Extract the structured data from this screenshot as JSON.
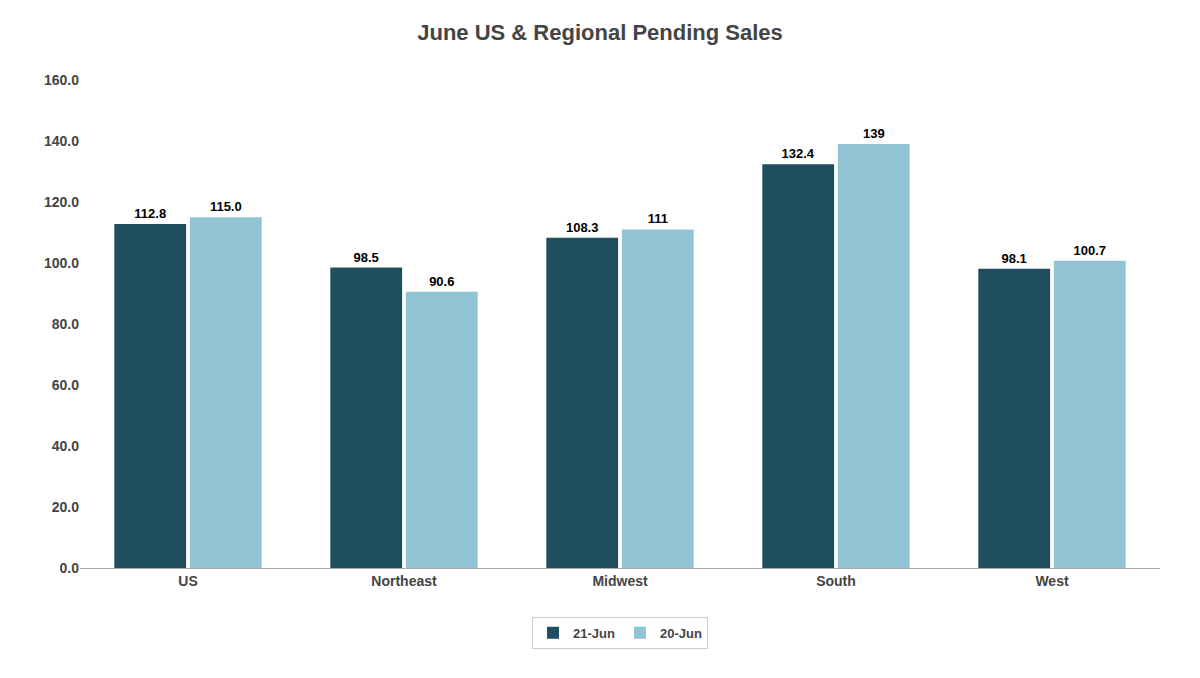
{
  "chart_data": {
    "type": "bar",
    "title": "June US & Regional Pending Sales",
    "categories": [
      "US",
      "Northeast",
      "Midwest",
      "South",
      "West"
    ],
    "series": [
      {
        "name": "21-Jun",
        "color": "#1f4e5f",
        "values": [
          112.8,
          98.5,
          108.3,
          132.4,
          98.1
        ],
        "value_labels": [
          "112.8",
          "98.5",
          "108.3",
          "132.4",
          "98.1"
        ]
      },
      {
        "name": "20-Jun",
        "color": "#90c4d4",
        "values": [
          115.0,
          90.6,
          111.0,
          139.0,
          100.7
        ],
        "value_labels": [
          "115.0",
          "90.6",
          "111",
          "139",
          "100.7"
        ]
      }
    ],
    "ylim": [
      0,
      160
    ],
    "yticks": [
      {
        "value": 0,
        "label": "0.0"
      },
      {
        "value": 20,
        "label": "20.0"
      },
      {
        "value": 40,
        "label": "40.0"
      },
      {
        "value": 60,
        "label": "60.0"
      },
      {
        "value": 80,
        "label": "80.0"
      },
      {
        "value": 100,
        "label": "100.0"
      },
      {
        "value": 120,
        "label": "120.0"
      },
      {
        "value": 140,
        "label": "140.0"
      },
      {
        "value": 160,
        "label": "160.0"
      }
    ],
    "data_labels": true,
    "grid": false,
    "legend": "bottom"
  }
}
